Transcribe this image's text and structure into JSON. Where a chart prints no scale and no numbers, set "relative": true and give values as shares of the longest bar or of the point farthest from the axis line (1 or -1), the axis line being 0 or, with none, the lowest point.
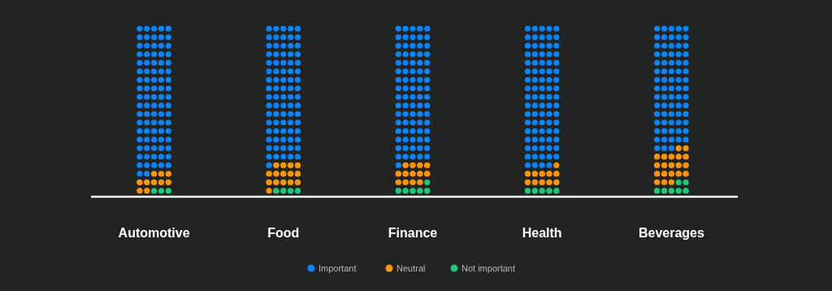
{
  "chart_data": {
    "type": "bar",
    "stacked": true,
    "relative": true,
    "categories": [
      "Automotive",
      "Food",
      "Finance",
      "Health",
      "Beverages"
    ],
    "series": [
      {
        "name": "Not important",
        "color": "#1fc77a",
        "values": [
          0.03,
          0.04,
          0.06,
          0.05,
          0.07
        ]
      },
      {
        "name": "Neutral",
        "color": "#ff9500",
        "values": [
          0.1,
          0.15,
          0.13,
          0.11,
          0.2
        ]
      },
      {
        "name": "Important",
        "color": "#0a84ff",
        "values": [
          0.87,
          0.81,
          0.81,
          0.84,
          0.73
        ]
      }
    ],
    "legend": "bottom"
  }
}
